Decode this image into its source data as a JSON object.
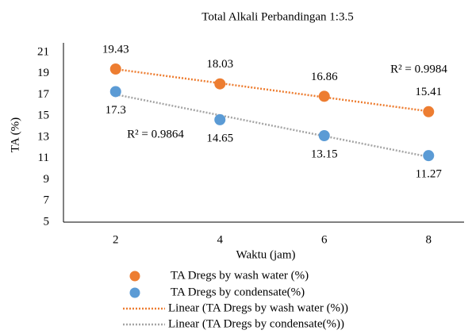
{
  "chart_data": {
    "type": "scatter",
    "title": "Total Alkali Perbandingan 1:3.5",
    "x_label": "Waktu (jam)",
    "y_label": "TA (%)",
    "x": [
      2,
      4,
      6,
      8
    ],
    "xlim": [
      1,
      9
    ],
    "xticks": [
      2,
      4,
      6,
      8
    ],
    "ylim": [
      5,
      21
    ],
    "yticks": [
      5,
      7,
      9,
      11,
      13,
      15,
      17,
      19,
      21
    ],
    "grid": false,
    "legend": "bottom",
    "series": [
      {
        "name": "TA Dregs by wash water (%)",
        "color": "#ed7d31",
        "values": [
          19.43,
          18.03,
          16.86,
          15.41
        ],
        "trendline_name": "Linear (TA Dregs by wash water (%))",
        "trendline_color": "#ed7d31"
      },
      {
        "name": "TA Dregs by condensate(%)",
        "color": "#5b9bd5",
        "values": [
          17.3,
          14.65,
          13.15,
          11.27
        ],
        "trendline_name": "Linear (TA Dregs by condensate(%))",
        "trendline_color": "#a5a5a5"
      }
    ],
    "annotations": [
      "R² = 0.9984",
      "R² = 0.9864"
    ]
  }
}
